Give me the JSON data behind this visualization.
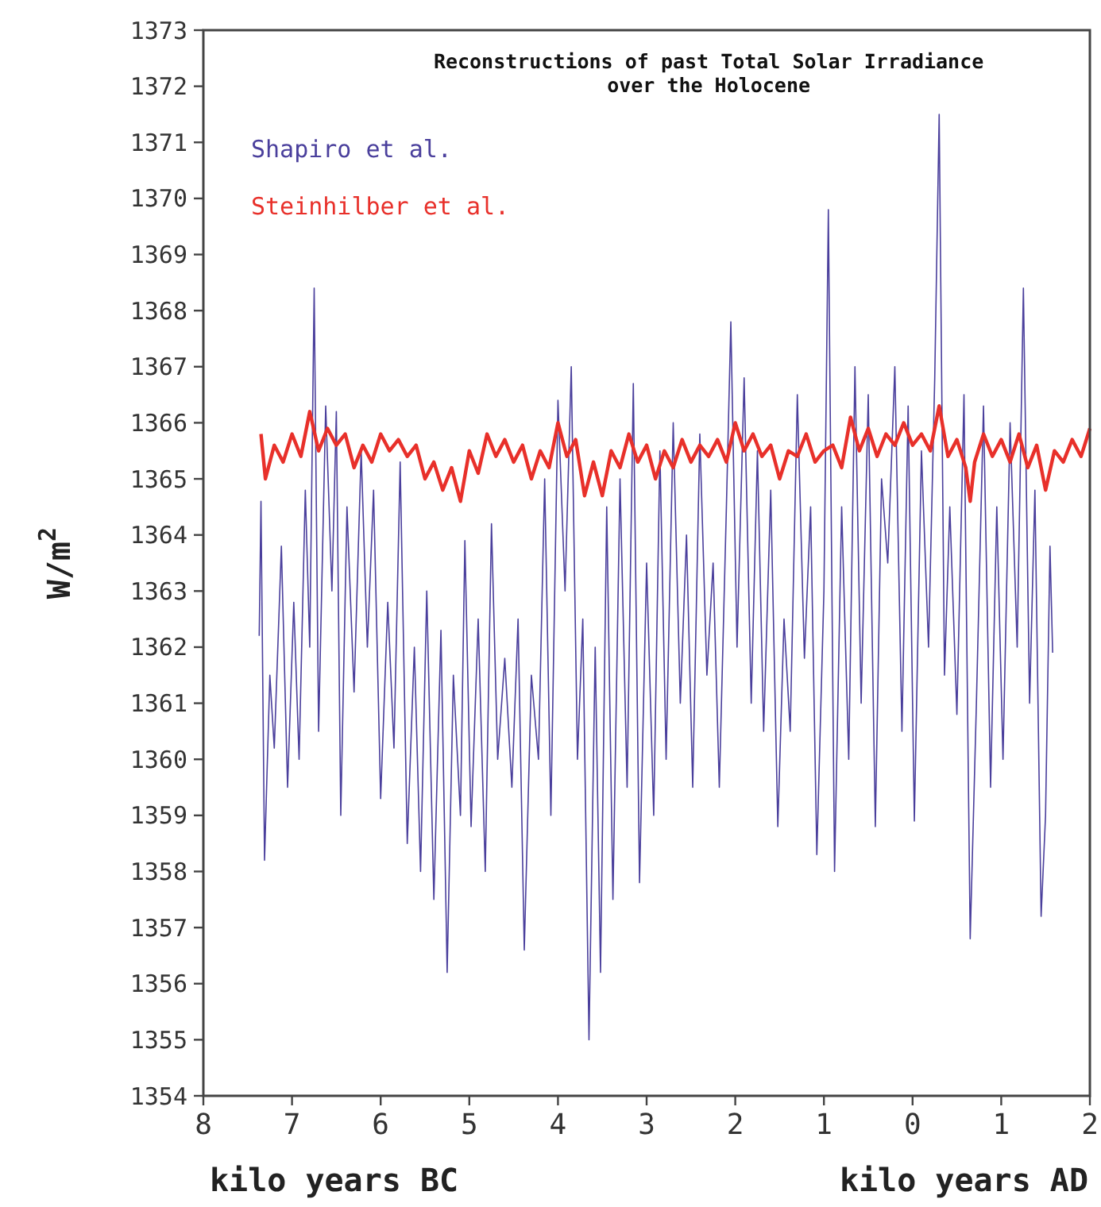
{
  "chart_data": {
    "type": "line",
    "title": "Reconstructions of past Total Solar Irradiance\nover the Holocene",
    "ylabel": "W/m$^{2}$",
    "xlabel": "kilo years BC",
    "annotations": [
      "kilo years AD"
    ],
    "xlim": [
      -8,
      2
    ],
    "xticks": [
      {
        "value": -8,
        "label": "8"
      },
      {
        "value": -7,
        "label": "7"
      },
      {
        "value": -6,
        "label": "6"
      },
      {
        "value": -5,
        "label": "5"
      },
      {
        "value": -4,
        "label": "4"
      },
      {
        "value": -3,
        "label": "3"
      },
      {
        "value": -2,
        "label": "2"
      },
      {
        "value": -1,
        "label": "1"
      },
      {
        "value": 0,
        "label": "0"
      },
      {
        "value": 1,
        "label": "1"
      },
      {
        "value": 2,
        "label": "2"
      }
    ],
    "ylim": [
      1354,
      1373
    ],
    "yticks": [
      1354,
      1355,
      1356,
      1357,
      1358,
      1359,
      1360,
      1361,
      1362,
      1363,
      1364,
      1365,
      1366,
      1367,
      1368,
      1369,
      1370,
      1371,
      1372,
      1373
    ],
    "grid": false,
    "legend": "top left",
    "marker": "none",
    "line_style": "solid",
    "series": [
      {
        "name": "Shapiro et al.",
        "color": "#4a3f9c",
        "x": [
          -7.37,
          -7.35,
          -7.31,
          -7.25,
          -7.2,
          -7.12,
          -7.05,
          -6.98,
          -6.92,
          -6.85,
          -6.8,
          -6.75,
          -6.7,
          -6.62,
          -6.55,
          -6.5,
          -6.45,
          -6.38,
          -6.3,
          -6.22,
          -6.15,
          -6.08,
          -6.0,
          -5.92,
          -5.85,
          -5.78,
          -5.7,
          -5.62,
          -5.55,
          -5.48,
          -5.4,
          -5.32,
          -5.25,
          -5.18,
          -5.1,
          -5.05,
          -4.98,
          -4.9,
          -4.82,
          -4.75,
          -4.68,
          -4.6,
          -4.52,
          -4.45,
          -4.38,
          -4.3,
          -4.22,
          -4.15,
          -4.08,
          -4.0,
          -3.92,
          -3.85,
          -3.78,
          -3.72,
          -3.65,
          -3.58,
          -3.52,
          -3.45,
          -3.38,
          -3.3,
          -3.22,
          -3.15,
          -3.08,
          -3.0,
          -2.92,
          -2.85,
          -2.78,
          -2.7,
          -2.62,
          -2.55,
          -2.48,
          -2.4,
          -2.32,
          -2.25,
          -2.18,
          -2.1,
          -2.05,
          -1.98,
          -1.9,
          -1.82,
          -1.75,
          -1.68,
          -1.6,
          -1.52,
          -1.45,
          -1.38,
          -1.3,
          -1.22,
          -1.15,
          -1.08,
          -1.0,
          -0.95,
          -0.88,
          -0.8,
          -0.72,
          -0.65,
          -0.58,
          -0.5,
          -0.42,
          -0.35,
          -0.28,
          -0.2,
          -0.12,
          -0.05,
          0.02,
          0.1,
          0.18,
          0.25,
          0.3,
          0.36,
          0.42,
          0.5,
          0.58,
          0.65,
          0.72,
          0.8,
          0.88,
          0.95,
          1.02,
          1.1,
          1.18,
          1.25,
          1.32,
          1.38,
          1.45,
          1.5,
          1.55,
          1.58
        ],
        "values": [
          1362.2,
          1364.6,
          1358.2,
          1361.5,
          1360.2,
          1363.8,
          1359.5,
          1362.8,
          1360.0,
          1364.8,
          1362.0,
          1368.4,
          1360.5,
          1366.3,
          1363.0,
          1366.2,
          1359.0,
          1364.5,
          1361.2,
          1365.5,
          1362.0,
          1364.8,
          1359.3,
          1362.8,
          1360.2,
          1365.3,
          1358.5,
          1362.0,
          1358.0,
          1363.0,
          1357.5,
          1362.3,
          1356.2,
          1361.5,
          1359.0,
          1363.9,
          1358.8,
          1362.5,
          1358.0,
          1364.2,
          1360.0,
          1361.8,
          1359.5,
          1362.5,
          1356.6,
          1361.5,
          1360.0,
          1365.0,
          1359.0,
          1366.4,
          1363.0,
          1367.0,
          1360.0,
          1362.5,
          1355.0,
          1362.0,
          1356.2,
          1364.5,
          1357.5,
          1365.0,
          1359.5,
          1366.7,
          1357.8,
          1363.5,
          1359.0,
          1365.5,
          1360.0,
          1366.0,
          1361.0,
          1364.0,
          1359.5,
          1365.8,
          1361.5,
          1363.5,
          1359.5,
          1364.5,
          1367.8,
          1362.0,
          1366.8,
          1361.0,
          1365.5,
          1360.5,
          1364.8,
          1358.8,
          1362.5,
          1360.5,
          1366.5,
          1361.8,
          1364.5,
          1358.3,
          1363.0,
          1369.8,
          1358.0,
          1364.5,
          1360.0,
          1367.0,
          1361.0,
          1366.5,
          1358.8,
          1365.0,
          1363.5,
          1367.0,
          1360.5,
          1366.3,
          1358.9,
          1365.5,
          1362.0,
          1366.8,
          1371.5,
          1361.5,
          1364.5,
          1360.8,
          1366.5,
          1356.8,
          1361.0,
          1366.3,
          1359.5,
          1364.5,
          1360.0,
          1366.0,
          1362.0,
          1368.4,
          1361.0,
          1364.8,
          1357.2,
          1359.0,
          1363.8,
          1361.9
        ]
      },
      {
        "name": "Steinhilber et al.",
        "color": "#e8302a",
        "x": [
          -7.35,
          -7.3,
          -7.2,
          -7.1,
          -7.0,
          -6.9,
          -6.8,
          -6.7,
          -6.6,
          -6.5,
          -6.4,
          -6.3,
          -6.2,
          -6.1,
          -6.0,
          -5.9,
          -5.8,
          -5.7,
          -5.6,
          -5.5,
          -5.4,
          -5.3,
          -5.2,
          -5.1,
          -5.0,
          -4.9,
          -4.8,
          -4.7,
          -4.6,
          -4.5,
          -4.4,
          -4.3,
          -4.2,
          -4.1,
          -4.0,
          -3.9,
          -3.8,
          -3.7,
          -3.6,
          -3.5,
          -3.4,
          -3.3,
          -3.2,
          -3.1,
          -3.0,
          -2.9,
          -2.8,
          -2.7,
          -2.6,
          -2.5,
          -2.4,
          -2.3,
          -2.2,
          -2.1,
          -2.0,
          -1.9,
          -1.8,
          -1.7,
          -1.6,
          -1.5,
          -1.4,
          -1.3,
          -1.2,
          -1.1,
          -1.0,
          -0.9,
          -0.8,
          -0.7,
          -0.6,
          -0.5,
          -0.4,
          -0.3,
          -0.2,
          -0.1,
          0.0,
          0.1,
          0.2,
          0.3,
          0.4,
          0.5,
          0.6,
          0.65,
          0.7,
          0.8,
          0.9,
          1.0,
          1.1,
          1.2,
          1.3,
          1.4,
          1.5,
          1.6,
          1.7,
          1.8,
          1.9,
          2.0
        ],
        "values": [
          1365.8,
          1365.0,
          1365.6,
          1365.3,
          1365.8,
          1365.4,
          1366.2,
          1365.5,
          1365.9,
          1365.6,
          1365.8,
          1365.2,
          1365.6,
          1365.3,
          1365.8,
          1365.5,
          1365.7,
          1365.4,
          1365.6,
          1365.0,
          1365.3,
          1364.8,
          1365.2,
          1364.6,
          1365.5,
          1365.1,
          1365.8,
          1365.4,
          1365.7,
          1365.3,
          1365.6,
          1365.0,
          1365.5,
          1365.2,
          1366.0,
          1365.4,
          1365.7,
          1364.7,
          1365.3,
          1364.7,
          1365.5,
          1365.2,
          1365.8,
          1365.3,
          1365.6,
          1365.0,
          1365.5,
          1365.2,
          1365.7,
          1365.3,
          1365.6,
          1365.4,
          1365.7,
          1365.3,
          1366.0,
          1365.5,
          1365.8,
          1365.4,
          1365.6,
          1365.0,
          1365.5,
          1365.4,
          1365.8,
          1365.3,
          1365.5,
          1365.6,
          1365.2,
          1366.1,
          1365.5,
          1365.9,
          1365.4,
          1365.8,
          1365.6,
          1366.0,
          1365.6,
          1365.8,
          1365.5,
          1366.3,
          1365.4,
          1365.7,
          1365.2,
          1364.6,
          1365.3,
          1365.8,
          1365.4,
          1365.7,
          1365.3,
          1365.8,
          1365.2,
          1365.6,
          1364.8,
          1365.5,
          1365.3,
          1365.7,
          1365.4,
          1365.9
        ]
      }
    ]
  }
}
